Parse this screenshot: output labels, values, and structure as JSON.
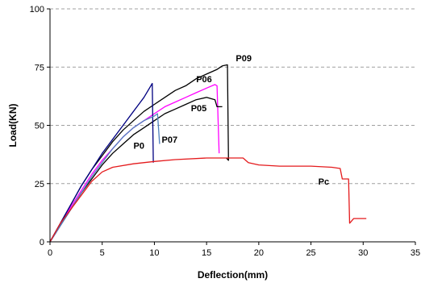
{
  "chart_data": {
    "type": "line",
    "title": "",
    "xlabel": "Deflection(mm)",
    "ylabel": "Load(KN)",
    "xlim": [
      0,
      35
    ],
    "ylim": [
      0,
      100
    ],
    "xticks": [
      0,
      5,
      10,
      15,
      20,
      25,
      30,
      35
    ],
    "yticks": [
      0,
      25,
      50,
      75,
      100
    ],
    "grid": "horizontal dashed",
    "legend": "none",
    "series": [
      {
        "name": "P09",
        "color": "#000000",
        "points": [
          [
            0,
            0
          ],
          [
            1,
            8
          ],
          [
            2,
            16
          ],
          [
            3,
            24
          ],
          [
            4,
            31
          ],
          [
            5,
            37
          ],
          [
            6,
            43
          ],
          [
            7,
            48
          ],
          [
            8,
            52
          ],
          [
            9,
            56
          ],
          [
            10,
            59
          ],
          [
            11,
            62
          ],
          [
            12,
            65
          ],
          [
            13,
            67
          ],
          [
            14,
            70
          ],
          [
            15,
            72
          ],
          [
            16,
            74
          ],
          [
            16.5,
            75.5
          ],
          [
            17,
            76
          ],
          [
            17.1,
            35
          ],
          [
            16.9,
            36
          ]
        ]
      },
      {
        "name": "P06",
        "color": "#ff00ff",
        "points": [
          [
            0,
            0
          ],
          [
            1,
            7
          ],
          [
            2,
            15
          ],
          [
            3,
            22
          ],
          [
            4,
            29
          ],
          [
            5,
            35
          ],
          [
            6,
            40
          ],
          [
            7,
            45
          ],
          [
            8,
            49
          ],
          [
            9,
            52
          ],
          [
            10,
            55
          ],
          [
            11,
            58
          ],
          [
            12,
            60
          ],
          [
            13,
            62
          ],
          [
            14,
            64
          ],
          [
            15,
            66
          ],
          [
            15.8,
            67.5
          ],
          [
            16,
            67
          ],
          [
            16.2,
            38
          ]
        ]
      },
      {
        "name": "P05",
        "color": "#000000",
        "points": [
          [
            0,
            0
          ],
          [
            1,
            7
          ],
          [
            2,
            14
          ],
          [
            3,
            21
          ],
          [
            4,
            27
          ],
          [
            5,
            33
          ],
          [
            6,
            38
          ],
          [
            7,
            42
          ],
          [
            8,
            46
          ],
          [
            9,
            49
          ],
          [
            10,
            52
          ],
          [
            11,
            55
          ],
          [
            12,
            57
          ],
          [
            13,
            59
          ],
          [
            14,
            61
          ],
          [
            15,
            62
          ],
          [
            15.8,
            61
          ],
          [
            16,
            58
          ],
          [
            16.5,
            58
          ]
        ]
      },
      {
        "name": "P0",
        "color": "#000080",
        "points": [
          [
            0,
            0
          ],
          [
            1,
            8
          ],
          [
            2,
            16
          ],
          [
            3,
            24
          ],
          [
            4,
            31
          ],
          [
            5,
            38
          ],
          [
            6,
            44
          ],
          [
            7,
            50
          ],
          [
            8,
            56
          ],
          [
            9,
            62
          ],
          [
            9.8,
            68
          ],
          [
            9.9,
            34
          ]
        ]
      },
      {
        "name": "P07",
        "color": "#4f81bd",
        "points": [
          [
            0,
            0
          ],
          [
            1,
            7
          ],
          [
            2,
            14
          ],
          [
            3,
            21
          ],
          [
            4,
            28
          ],
          [
            5,
            34
          ],
          [
            6,
            40
          ],
          [
            7,
            45
          ],
          [
            8,
            49
          ],
          [
            9,
            52
          ],
          [
            10,
            54
          ],
          [
            10.3,
            55
          ],
          [
            10.5,
            42
          ]
        ]
      },
      {
        "name": "Pc",
        "color": "#e41a1c",
        "points": [
          [
            0,
            0
          ],
          [
            0.5,
            4
          ],
          [
            1,
            8
          ],
          [
            2,
            14
          ],
          [
            3,
            20
          ],
          [
            4,
            26
          ],
          [
            5,
            30
          ],
          [
            6,
            32
          ],
          [
            8,
            33.5
          ],
          [
            10,
            34.5
          ],
          [
            12,
            35.3
          ],
          [
            15,
            36
          ],
          [
            17,
            36
          ],
          [
            18.5,
            36
          ],
          [
            19,
            34
          ],
          [
            20,
            33
          ],
          [
            22,
            32.5
          ],
          [
            25,
            32.5
          ],
          [
            27,
            32
          ],
          [
            27.8,
            31.5
          ],
          [
            28,
            27
          ],
          [
            28.6,
            27
          ],
          [
            28.7,
            8
          ],
          [
            29.1,
            10
          ],
          [
            30,
            10
          ],
          [
            30.3,
            10
          ]
        ]
      }
    ],
    "labels": [
      {
        "text": "P09",
        "x": 17.8,
        "y": 77.5
      },
      {
        "text": "P06",
        "x": 14.0,
        "y": 68.5
      },
      {
        "text": "P05",
        "x": 13.5,
        "y": 56.0
      },
      {
        "text": "P0",
        "x": 8.0,
        "y": 40.0
      },
      {
        "text": "P07",
        "x": 10.7,
        "y": 42.5
      },
      {
        "text": "Pc",
        "x": 25.7,
        "y": 24.5
      }
    ]
  }
}
